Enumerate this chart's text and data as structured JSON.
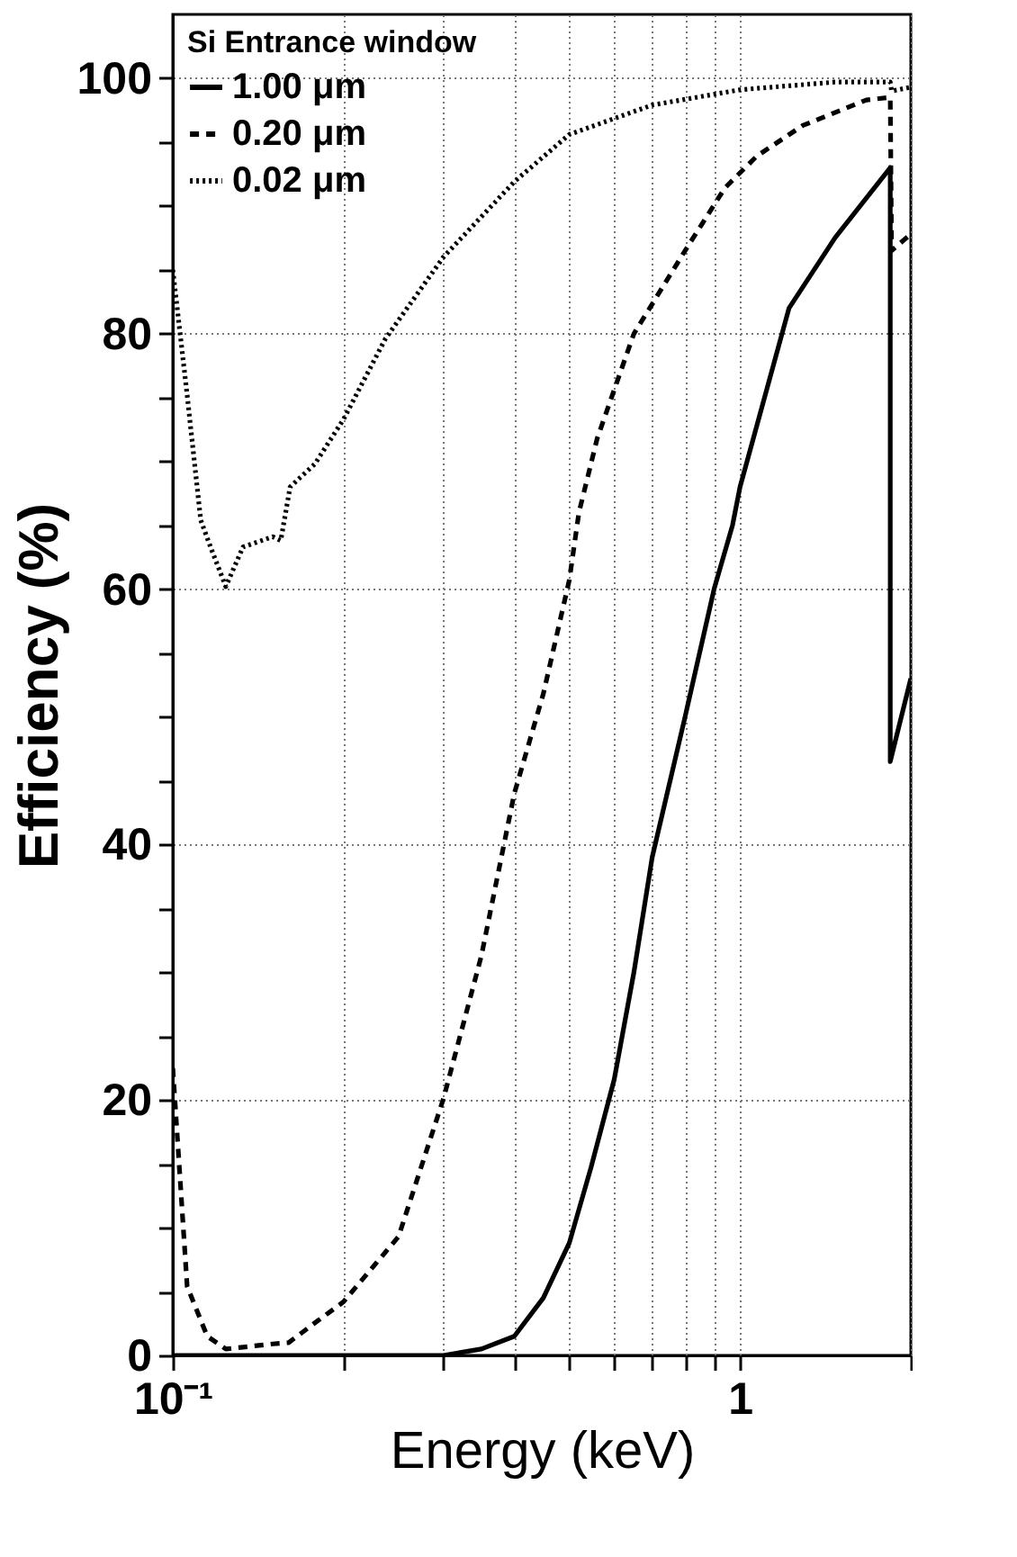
{
  "chart_data": {
    "type": "line",
    "xlabel": "Energy (keV)",
    "ylabel": "Efficiency (%)",
    "legend_title": "Si Entrance window",
    "log": "x",
    "grid": true,
    "legend": "top left",
    "xlim": [
      0.1,
      2
    ],
    "ylim": [
      0,
      105
    ],
    "xticks": [
      {
        "value": 0.1,
        "label": "10⁻¹"
      },
      {
        "value": 0.2,
        "label": null
      },
      {
        "value": 0.3,
        "label": null
      },
      {
        "value": 0.4,
        "label": null
      },
      {
        "value": 0.5,
        "label": null
      },
      {
        "value": 0.6,
        "label": null
      },
      {
        "value": 0.7,
        "label": null
      },
      {
        "value": 0.8,
        "label": null
      },
      {
        "value": 0.9,
        "label": null
      },
      1,
      {
        "value": 2,
        "label": null
      }
    ],
    "yticks": [
      0,
      {
        "value": 5,
        "label": null
      },
      {
        "value": 10,
        "label": null
      },
      {
        "value": 15,
        "label": null
      },
      20,
      {
        "value": 25,
        "label": null
      },
      {
        "value": 30,
        "label": null
      },
      {
        "value": 35,
        "label": null
      },
      40,
      {
        "value": 45,
        "label": null
      },
      {
        "value": 50,
        "label": null
      },
      {
        "value": 55,
        "label": null
      },
      60,
      {
        "value": 65,
        "label": null
      },
      {
        "value": 70,
        "label": null
      },
      {
        "value": 75,
        "label": null
      },
      80,
      {
        "value": 85,
        "label": null
      },
      {
        "value": 90,
        "label": null
      },
      {
        "value": 95,
        "label": null
      },
      100
    ],
    "series": [
      {
        "name": "1.00 μm",
        "color": "#000000",
        "line_style": "solid",
        "x": [
          0.1,
          0.3,
          0.35,
          0.4,
          0.45,
          0.5,
          0.546,
          0.6,
          0.65,
          0.7,
          0.8,
          0.9,
          0.97,
          1.0,
          1.22,
          1.47,
          1.84,
          1.84,
          2
        ],
        "values": [
          0,
          0,
          0.5,
          1.5,
          4.5,
          8.8,
          14.7,
          21.6,
          30,
          39,
          50,
          60,
          65,
          68,
          82,
          87.5,
          93,
          46.5,
          53
        ]
      },
      {
        "name": "0.20 μm",
        "color": "#000000",
        "line_style": "dashed",
        "x": [
          0.1,
          0.106,
          0.115,
          0.124,
          0.15,
          0.16,
          0.18,
          0.2,
          0.25,
          0.3,
          0.35,
          0.4,
          0.45,
          0.5,
          0.52,
          0.56,
          0.65,
          0.8,
          0.94,
          1.07,
          1.29,
          1.67,
          1.84,
          1.85,
          2
        ],
        "values": [
          22.5,
          5.4,
          1.5,
          0.5,
          0.9,
          1.0,
          2.7,
          4.2,
          9.3,
          20.1,
          31.3,
          44,
          51.8,
          60.7,
          66,
          71.8,
          80,
          86.5,
          91.4,
          93.9,
          96.3,
          98.3,
          98.5,
          86.5,
          87.8
        ]
      },
      {
        "name": "0.02 μm",
        "color": "#000000",
        "line_style": "dotted",
        "x": [
          0.1,
          0.106,
          0.112,
          0.117,
          0.124,
          0.133,
          0.15,
          0.155,
          0.161,
          0.178,
          0.2,
          0.237,
          0.3,
          0.4,
          0.5,
          0.7,
          1.0,
          1.47,
          1.84,
          1.85,
          2
        ],
        "values": [
          85,
          75.2,
          65.4,
          63.1,
          60.2,
          63.3,
          64.1,
          63.8,
          68,
          69.8,
          73.3,
          79.6,
          86,
          91.9,
          95.6,
          97.9,
          99.1,
          99.7,
          99.7,
          99,
          99.3
        ]
      }
    ]
  }
}
